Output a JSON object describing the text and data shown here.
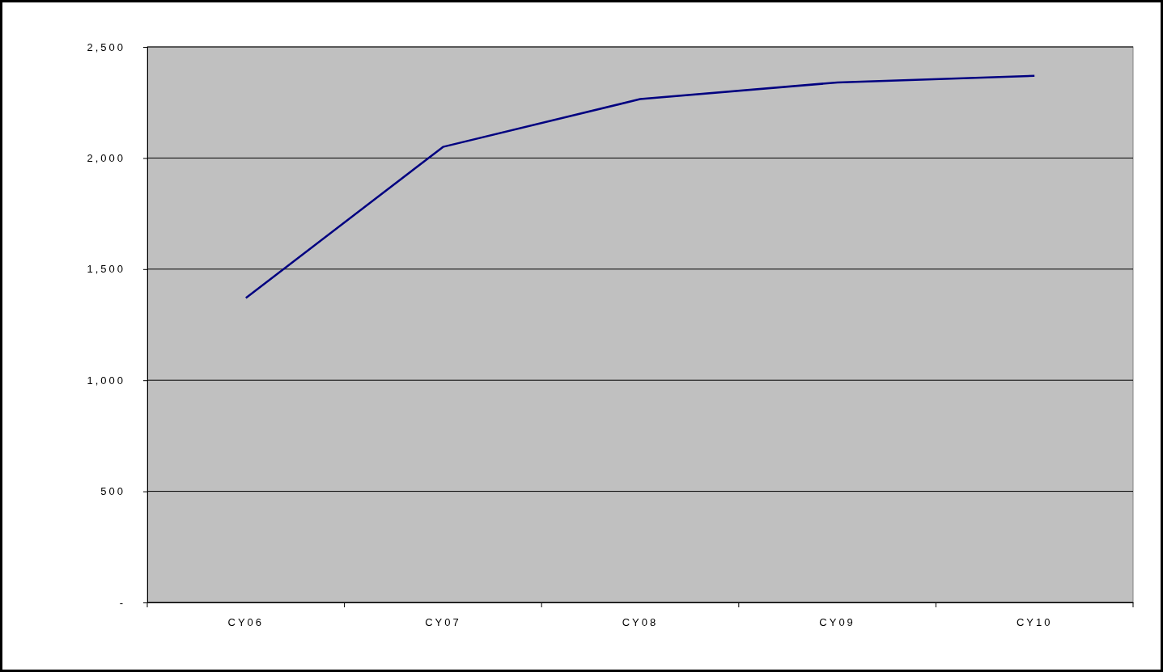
{
  "chart_data": {
    "type": "line",
    "categories": [
      "CY06",
      "CY07",
      "CY08",
      "CY09",
      "CY10"
    ],
    "series": [
      {
        "color": "#000080",
        "values": [
          1370,
          2050,
          2265,
          2340,
          2370
        ]
      }
    ],
    "ylim": [
      0,
      2500
    ],
    "yticks": [
      {
        "value": 0,
        "label": "-"
      },
      {
        "value": 500,
        "label": "500"
      },
      {
        "value": 1000,
        "label": "1,000"
      },
      {
        "value": 1500,
        "label": "1,500"
      },
      {
        "value": 2000,
        "label": "2,000"
      },
      {
        "value": 2500,
        "label": "2,500"
      }
    ],
    "grid": "y",
    "marker": "none",
    "line_style": "solid"
  }
}
